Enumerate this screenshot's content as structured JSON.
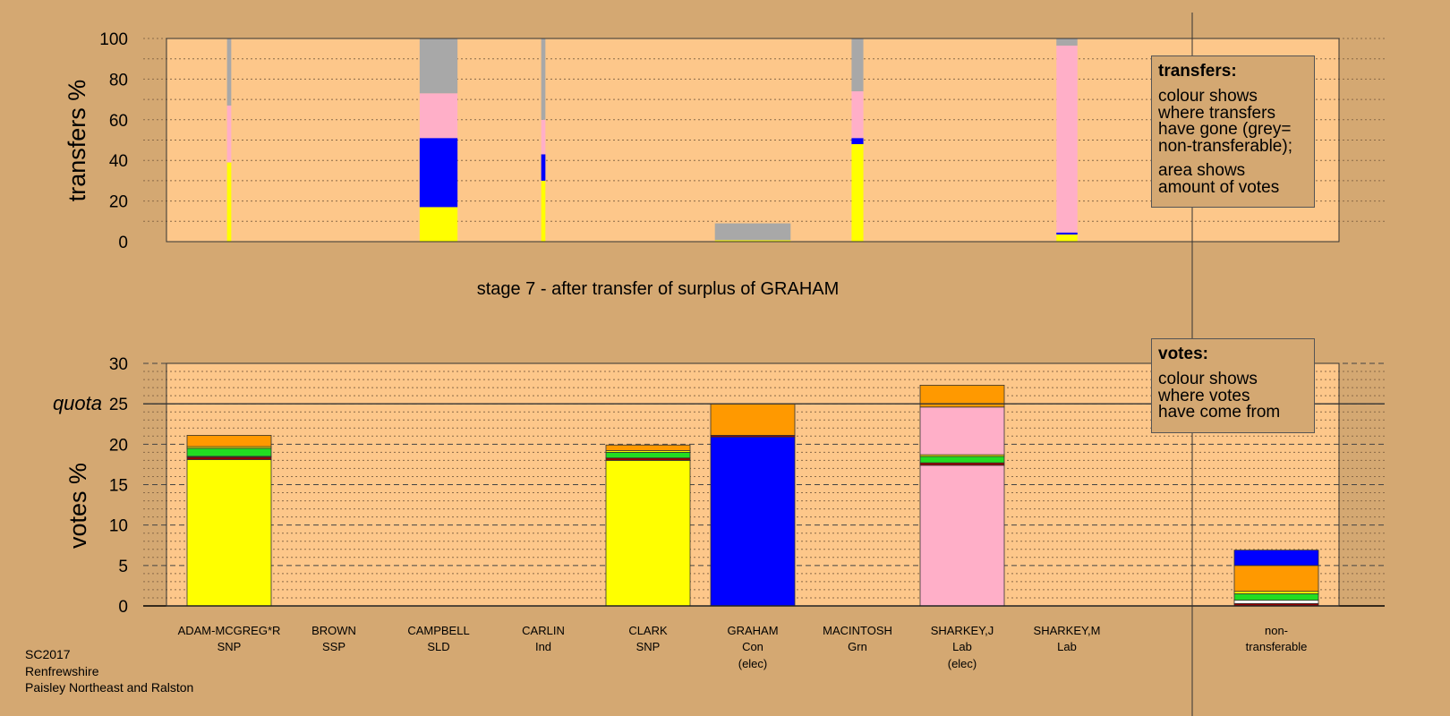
{
  "stage_title": "stage 7 - after transfer of surplus of GRAHAM",
  "footer": {
    "line1": "SC2017",
    "line2": "Renfrewshire",
    "line3": "Paisley Northeast and Ralston"
  },
  "legend_transfers": {
    "title": "transfers:",
    "lines1": [
      "colour shows",
      "where transfers",
      "have gone (grey=",
      "non-transferable);"
    ],
    "lines2": [
      "area shows",
      "amount of votes"
    ]
  },
  "legend_votes": {
    "title": "votes:",
    "lines": [
      "colour shows",
      "where votes",
      "have come from"
    ]
  },
  "colors": {
    "SNP": "#ffff00",
    "SSP": "#ff0000",
    "SLD": "#ff9900",
    "Ind": "#22dd22",
    "Con": "#0000ff",
    "Grn": "#00cc00",
    "Lab": "#ffafc8",
    "nontransferable": "#a8a8a8",
    "dark": "#990000",
    "plot_bg": "#fdc78a",
    "page_bg": "#d4a872"
  },
  "chart_data": [
    {
      "type": "bar",
      "stacked": true,
      "ylabel": "transfers %",
      "ylim": [
        0,
        100
      ],
      "yticks": [
        0,
        20,
        40,
        60,
        80,
        100
      ],
      "bars": [
        {
          "candidate": "ADAM-MCGREG*R",
          "width_fraction": 0.05,
          "segments": [
            {
              "color": "#ffff00",
              "value": 39
            },
            {
              "color": "#ffafc8",
              "value": 28
            },
            {
              "color": "#a8a8a8",
              "value": 33
            }
          ]
        },
        {
          "candidate": "CAMPBELL",
          "width_fraction": 0.45,
          "segments": [
            {
              "color": "#ffff00",
              "value": 17
            },
            {
              "color": "#0000ff",
              "value": 34
            },
            {
              "color": "#ffafc8",
              "value": 22
            },
            {
              "color": "#a8a8a8",
              "value": 27
            }
          ]
        },
        {
          "candidate": "CARLIN",
          "width_fraction": 0.05,
          "segments": [
            {
              "color": "#ffff00",
              "value": 30
            },
            {
              "color": "#0000ff",
              "value": 13
            },
            {
              "color": "#ffafc8",
              "value": 17
            },
            {
              "color": "#a8a8a8",
              "value": 40
            }
          ]
        },
        {
          "candidate": "GRAHAM",
          "width_fraction": 0.9,
          "segments": [
            {
              "color": "#ffff00",
              "value": 0.7
            },
            {
              "color": "#a8a8a8",
              "value": 8.3
            }
          ]
        },
        {
          "candidate": "MACINTOSH",
          "width_fraction": 0.14,
          "segments": [
            {
              "color": "#ffff00",
              "value": 48
            },
            {
              "color": "#0000ff",
              "value": 3
            },
            {
              "color": "#ffafc8",
              "value": 23
            },
            {
              "color": "#a8a8a8",
              "value": 26
            }
          ]
        },
        {
          "candidate": "SHARKEY,M",
          "width_fraction": 0.25,
          "segments": [
            {
              "color": "#ffff00",
              "value": 3.5
            },
            {
              "color": "#0000ff",
              "value": 1
            },
            {
              "color": "#ffafc8",
              "value": 92
            },
            {
              "color": "#a8a8a8",
              "value": 3.5
            }
          ]
        }
      ]
    },
    {
      "type": "bar",
      "stacked": true,
      "ylabel": "votes %",
      "ylim": [
        0,
        30
      ],
      "yticks": [
        0,
        5,
        10,
        15,
        20,
        25,
        30
      ],
      "quota": 25,
      "quota_label": "quota",
      "categories": [
        {
          "name": "ADAM-MCGREG*R",
          "party": "SNP",
          "note": "",
          "segments": [
            {
              "color": "#ffff00",
              "value": 18.1
            },
            {
              "color": "#990000",
              "value": 0.3
            },
            {
              "color": "#ff0000",
              "value": 0.1
            },
            {
              "color": "#22dd22",
              "value": 1.0
            },
            {
              "color": "#ffff00",
              "value": 0.2
            },
            {
              "color": "#ff9900",
              "value": 1.4
            }
          ]
        },
        {
          "name": "BROWN",
          "party": "SSP",
          "note": "",
          "segments": []
        },
        {
          "name": "CAMPBELL",
          "party": "SLD",
          "note": "",
          "segments": []
        },
        {
          "name": "CARLIN",
          "party": "Ind",
          "note": "",
          "segments": []
        },
        {
          "name": "CLARK",
          "party": "SNP",
          "note": "",
          "segments": [
            {
              "color": "#ffff00",
              "value": 18.0
            },
            {
              "color": "#990000",
              "value": 0.3
            },
            {
              "color": "#22dd22",
              "value": 0.7
            },
            {
              "color": "#ffff00",
              "value": 0.2
            },
            {
              "color": "#ff9900",
              "value": 0.7
            }
          ]
        },
        {
          "name": "GRAHAM",
          "party": "Con",
          "note": "(elec)",
          "segments": [
            {
              "color": "#0000ff",
              "value": 20.9
            },
            {
              "color": "#990000",
              "value": 0.2
            },
            {
              "color": "#ff9900",
              "value": 3.9
            }
          ]
        },
        {
          "name": "MACINTOSH",
          "party": "Grn",
          "note": "",
          "segments": []
        },
        {
          "name": "SHARKEY,J",
          "party": "Lab",
          "note": "(elec)",
          "segments": [
            {
              "color": "#ffafc8",
              "value": 17.4
            },
            {
              "color": "#990000",
              "value": 0.3
            },
            {
              "color": "#22dd22",
              "value": 0.8
            },
            {
              "color": "#ffff00",
              "value": 0.2
            },
            {
              "color": "#ffafc8",
              "value": 5.9
            },
            {
              "color": "#ff9900",
              "value": 2.7
            }
          ]
        },
        {
          "name": "SHARKEY,M",
          "party": "Lab",
          "note": "",
          "segments": []
        },
        {
          "name": "non-",
          "party": "transferable",
          "note": "",
          "segments": [
            {
              "color": "#990000",
              "value": 0.3
            },
            {
              "color": "#ffffff",
              "value": 0.4
            },
            {
              "color": "#22dd22",
              "value": 0.8
            },
            {
              "color": "#ffff00",
              "value": 0.3
            },
            {
              "color": "#ff9900",
              "value": 3.2
            },
            {
              "color": "#0000ff",
              "value": 1.9
            }
          ]
        }
      ]
    }
  ]
}
